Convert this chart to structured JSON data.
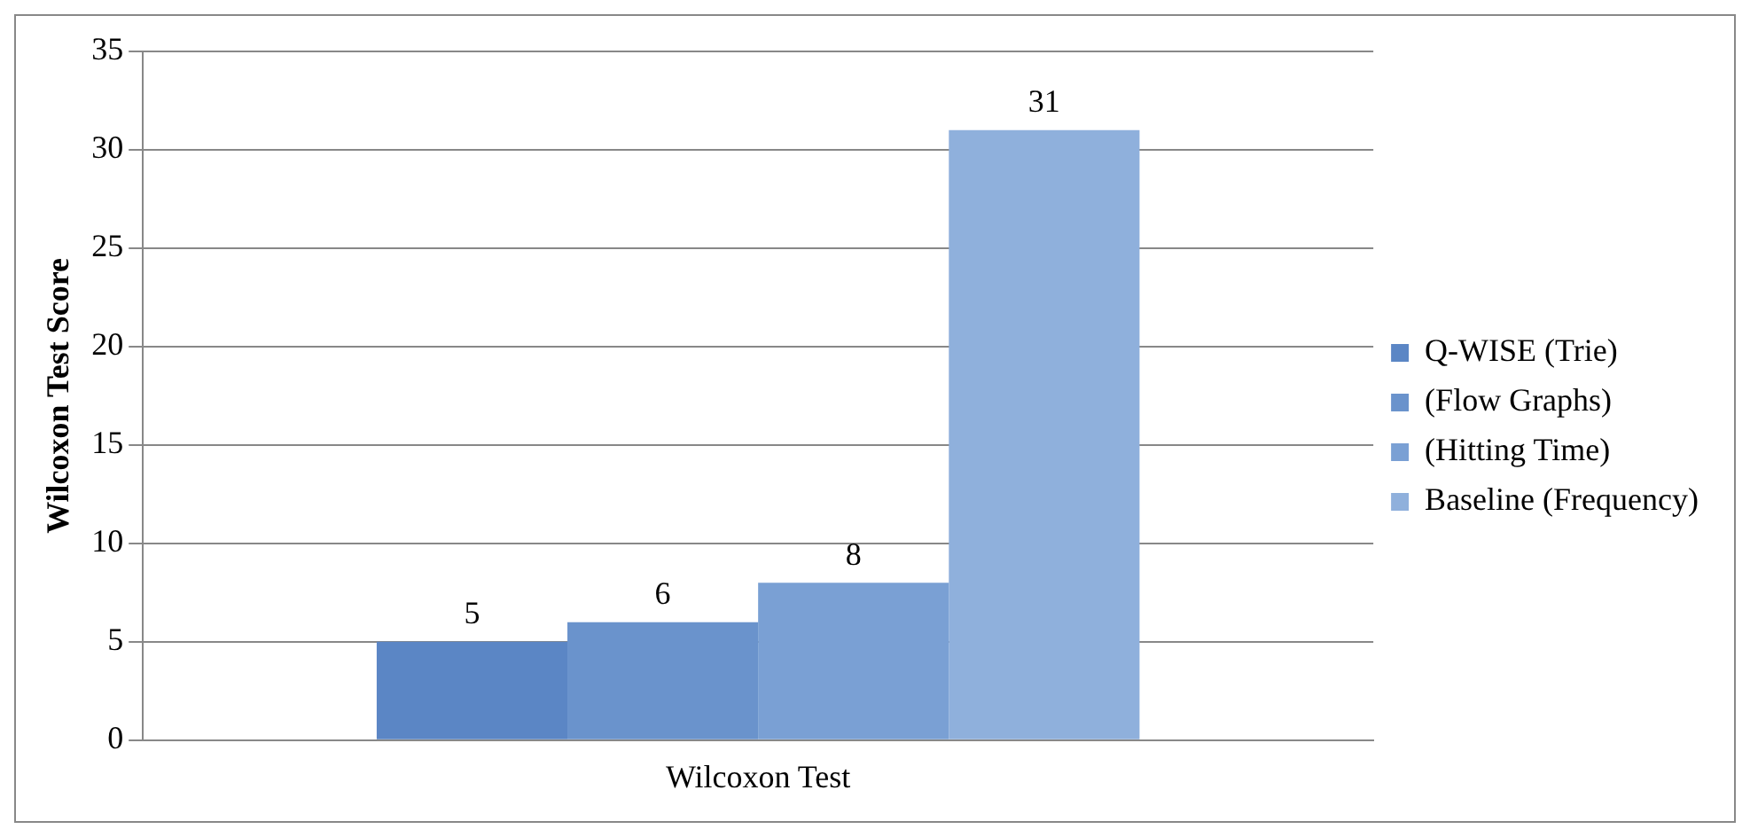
{
  "chart_data": {
    "type": "bar",
    "ylabel": "Wilcoxon Test Score",
    "categories": [
      "Wilcoxon Test"
    ],
    "series": [
      {
        "name": "Q-WISE (Trie)",
        "color": "#5b86c5",
        "values": [
          5
        ]
      },
      {
        "name": "(Flow Graphs)",
        "color": "#6a93cc",
        "values": [
          6
        ]
      },
      {
        "name": "(Hitting Time)",
        "color": "#7aa0d4",
        "values": [
          8
        ]
      },
      {
        "name": "Baseline (Frequency)",
        "color": "#8fb0dc",
        "values": [
          31
        ]
      }
    ],
    "ylim": [
      0,
      35
    ],
    "yticks": [
      0,
      5,
      10,
      15,
      20,
      25,
      30,
      35
    ],
    "grid": "y",
    "legend": "right",
    "data_labels": true
  }
}
